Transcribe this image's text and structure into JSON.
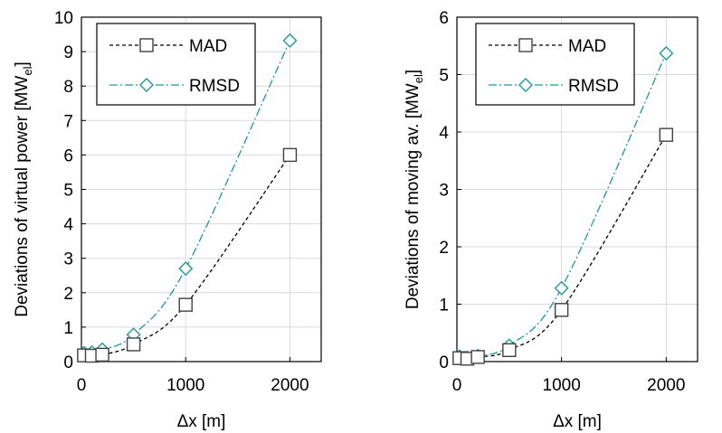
{
  "chart_data": [
    {
      "type": "line",
      "xlabel": "Δx [m]",
      "ylabel": "Deviations of virtual power [MW",
      "ylabel_sub": "el",
      "ylabel_close": "]",
      "xlim": [
        0,
        2300
      ],
      "ylim": [
        0,
        10
      ],
      "xticks": [
        0,
        1000,
        2000
      ],
      "yticks": [
        0,
        1,
        2,
        3,
        4,
        5,
        6,
        7,
        8,
        9,
        10
      ],
      "grid": true,
      "legend": "top-left",
      "series": [
        {
          "name": "MAD",
          "marker": "square",
          "line": "dashed",
          "color": "#000000",
          "x": [
            25,
            100,
            200,
            500,
            1000,
            2000
          ],
          "y": [
            0.18,
            0.17,
            0.2,
            0.5,
            1.65,
            6.0
          ]
        },
        {
          "name": "RMSD",
          "marker": "diamond",
          "line": "dash-dot",
          "color": "#1f9a92",
          "x": [
            25,
            100,
            200,
            500,
            1000,
            2000
          ],
          "y": [
            0.25,
            0.27,
            0.35,
            0.78,
            2.7,
            9.32
          ]
        }
      ]
    },
    {
      "type": "line",
      "xlabel": "Δx [m]",
      "ylabel": "Deviations of moving av. [MW",
      "ylabel_sub": "el",
      "ylabel_close": "]",
      "xlim": [
        0,
        2300
      ],
      "ylim": [
        0,
        6
      ],
      "xticks": [
        0,
        1000,
        2000
      ],
      "yticks": [
        0,
        1,
        2,
        3,
        4,
        5,
        6
      ],
      "grid": true,
      "legend": "top-left",
      "series": [
        {
          "name": "MAD",
          "marker": "square",
          "line": "dashed",
          "color": "#000000",
          "x": [
            25,
            100,
            200,
            500,
            1000,
            2000
          ],
          "y": [
            0.06,
            0.05,
            0.08,
            0.2,
            0.9,
            3.95
          ]
        },
        {
          "name": "RMSD",
          "marker": "diamond",
          "line": "dash-dot",
          "color": "#1f9a92",
          "x": [
            25,
            100,
            200,
            500,
            1000,
            2000
          ],
          "y": [
            0.09,
            0.07,
            0.1,
            0.28,
            1.28,
            5.37
          ]
        }
      ]
    }
  ]
}
